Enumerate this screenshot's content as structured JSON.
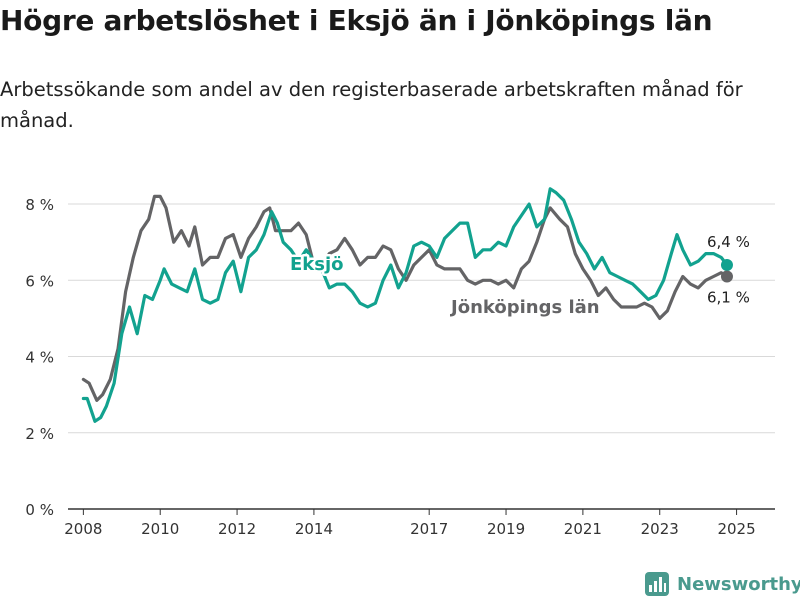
{
  "title": "Högre arbetslöshet i Eksjö än i Jönköpings län",
  "subtitle": "Arbetssökande som andel av den registerbaserade arbetskraften månad för månad.",
  "brand": "Newsworthy",
  "colors": {
    "eksjo": "#12a28f",
    "lan": "#646466",
    "grid": "#d9d9d9",
    "brand": "#4a9a8e"
  },
  "chart_data": {
    "type": "line",
    "x_unit": "year",
    "ylim": [
      0,
      8.5
    ],
    "xlim": [
      2007.6,
      2026.0
    ],
    "y_ticks": [
      0,
      2,
      4,
      6,
      8
    ],
    "y_tick_labels": [
      "0 %",
      "2 %",
      "4 %",
      "6 %",
      "8 %"
    ],
    "x_ticks": [
      2008,
      2010,
      2012,
      2014,
      2017,
      2019,
      2021,
      2023,
      2025
    ],
    "x_tick_labels": [
      "2008",
      "2010",
      "2012",
      "2014",
      "2017",
      "2019",
      "2021",
      "2023",
      "2025"
    ],
    "grid": true,
    "series": [
      {
        "name": "Eksjö",
        "color": "#12a28f",
        "end_label": "6,4 %",
        "points": [
          [
            2008.0,
            2.9
          ],
          [
            2008.1,
            2.9
          ],
          [
            2008.3,
            2.3
          ],
          [
            2008.45,
            2.4
          ],
          [
            2008.6,
            2.7
          ],
          [
            2008.8,
            3.3
          ],
          [
            2009.0,
            4.6
          ],
          [
            2009.2,
            5.3
          ],
          [
            2009.4,
            4.6
          ],
          [
            2009.6,
            5.6
          ],
          [
            2009.8,
            5.5
          ],
          [
            2010.0,
            6.0
          ],
          [
            2010.1,
            6.3
          ],
          [
            2010.3,
            5.9
          ],
          [
            2010.5,
            5.8
          ],
          [
            2010.7,
            5.7
          ],
          [
            2010.9,
            6.3
          ],
          [
            2011.1,
            5.5
          ],
          [
            2011.3,
            5.4
          ],
          [
            2011.5,
            5.5
          ],
          [
            2011.7,
            6.2
          ],
          [
            2011.9,
            6.5
          ],
          [
            2012.1,
            5.7
          ],
          [
            2012.3,
            6.6
          ],
          [
            2012.5,
            6.8
          ],
          [
            2012.7,
            7.2
          ],
          [
            2012.9,
            7.8
          ],
          [
            2013.05,
            7.5
          ],
          [
            2013.2,
            7.0
          ],
          [
            2013.4,
            6.8
          ],
          [
            2013.6,
            6.5
          ],
          [
            2013.8,
            6.8
          ],
          [
            2014.0,
            6.5
          ],
          [
            2014.2,
            6.3
          ],
          [
            2014.4,
            5.8
          ],
          [
            2014.6,
            5.9
          ],
          [
            2014.8,
            5.9
          ],
          [
            2015.0,
            5.7
          ],
          [
            2015.2,
            5.4
          ],
          [
            2015.4,
            5.3
          ],
          [
            2015.6,
            5.4
          ],
          [
            2015.8,
            6.0
          ],
          [
            2016.0,
            6.4
          ],
          [
            2016.2,
            5.8
          ],
          [
            2016.4,
            6.2
          ],
          [
            2016.6,
            6.9
          ],
          [
            2016.8,
            7.0
          ],
          [
            2017.0,
            6.9
          ],
          [
            2017.2,
            6.6
          ],
          [
            2017.4,
            7.1
          ],
          [
            2017.6,
            7.3
          ],
          [
            2017.8,
            7.5
          ],
          [
            2018.0,
            7.5
          ],
          [
            2018.2,
            6.6
          ],
          [
            2018.4,
            6.8
          ],
          [
            2018.6,
            6.8
          ],
          [
            2018.8,
            7.0
          ],
          [
            2019.0,
            6.9
          ],
          [
            2019.2,
            7.4
          ],
          [
            2019.4,
            7.7
          ],
          [
            2019.6,
            8.0
          ],
          [
            2019.8,
            7.4
          ],
          [
            2020.0,
            7.6
          ],
          [
            2020.15,
            8.4
          ],
          [
            2020.3,
            8.3
          ],
          [
            2020.5,
            8.1
          ],
          [
            2020.7,
            7.6
          ],
          [
            2020.9,
            7.0
          ],
          [
            2021.1,
            6.7
          ],
          [
            2021.3,
            6.3
          ],
          [
            2021.5,
            6.6
          ],
          [
            2021.7,
            6.2
          ],
          [
            2021.9,
            6.1
          ],
          [
            2022.1,
            6.0
          ],
          [
            2022.3,
            5.9
          ],
          [
            2022.5,
            5.7
          ],
          [
            2022.7,
            5.5
          ],
          [
            2022.9,
            5.6
          ],
          [
            2023.1,
            6.0
          ],
          [
            2023.3,
            6.7
          ],
          [
            2023.45,
            7.2
          ],
          [
            2023.6,
            6.8
          ],
          [
            2023.8,
            6.4
          ],
          [
            2024.0,
            6.5
          ],
          [
            2024.2,
            6.7
          ],
          [
            2024.4,
            6.7
          ],
          [
            2024.6,
            6.6
          ],
          [
            2024.75,
            6.4
          ]
        ]
      },
      {
        "name": "Jönköpings län",
        "color": "#646466",
        "end_label": "6,1 %",
        "points": [
          [
            2008.0,
            3.4
          ],
          [
            2008.15,
            3.3
          ],
          [
            2008.35,
            2.85
          ],
          [
            2008.5,
            3.0
          ],
          [
            2008.7,
            3.4
          ],
          [
            2008.9,
            4.2
          ],
          [
            2009.1,
            5.7
          ],
          [
            2009.3,
            6.6
          ],
          [
            2009.5,
            7.3
          ],
          [
            2009.7,
            7.6
          ],
          [
            2009.85,
            8.2
          ],
          [
            2010.0,
            8.2
          ],
          [
            2010.15,
            7.9
          ],
          [
            2010.35,
            7.0
          ],
          [
            2010.55,
            7.3
          ],
          [
            2010.75,
            6.9
          ],
          [
            2010.9,
            7.4
          ],
          [
            2011.1,
            6.4
          ],
          [
            2011.3,
            6.6
          ],
          [
            2011.5,
            6.6
          ],
          [
            2011.7,
            7.1
          ],
          [
            2011.9,
            7.2
          ],
          [
            2012.1,
            6.6
          ],
          [
            2012.3,
            7.1
          ],
          [
            2012.5,
            7.4
          ],
          [
            2012.7,
            7.8
          ],
          [
            2012.85,
            7.9
          ],
          [
            2013.0,
            7.3
          ],
          [
            2013.2,
            7.3
          ],
          [
            2013.4,
            7.3
          ],
          [
            2013.6,
            7.5
          ],
          [
            2013.8,
            7.2
          ],
          [
            2014.0,
            6.4
          ],
          [
            2014.2,
            6.4
          ],
          [
            2014.4,
            6.7
          ],
          [
            2014.6,
            6.8
          ],
          [
            2014.8,
            7.1
          ],
          [
            2015.0,
            6.8
          ],
          [
            2015.2,
            6.4
          ],
          [
            2015.4,
            6.6
          ],
          [
            2015.6,
            6.6
          ],
          [
            2015.8,
            6.9
          ],
          [
            2016.0,
            6.8
          ],
          [
            2016.2,
            6.3
          ],
          [
            2016.4,
            6.0
          ],
          [
            2016.6,
            6.4
          ],
          [
            2016.8,
            6.6
          ],
          [
            2017.0,
            6.8
          ],
          [
            2017.2,
            6.4
          ],
          [
            2017.4,
            6.3
          ],
          [
            2017.6,
            6.3
          ],
          [
            2017.8,
            6.3
          ],
          [
            2018.0,
            6.0
          ],
          [
            2018.2,
            5.9
          ],
          [
            2018.4,
            6.0
          ],
          [
            2018.6,
            6.0
          ],
          [
            2018.8,
            5.9
          ],
          [
            2019.0,
            6.0
          ],
          [
            2019.2,
            5.8
          ],
          [
            2019.4,
            6.3
          ],
          [
            2019.6,
            6.5
          ],
          [
            2019.8,
            7.0
          ],
          [
            2020.0,
            7.6
          ],
          [
            2020.15,
            7.9
          ],
          [
            2020.4,
            7.6
          ],
          [
            2020.6,
            7.4
          ],
          [
            2020.8,
            6.7
          ],
          [
            2021.0,
            6.3
          ],
          [
            2021.2,
            6.0
          ],
          [
            2021.4,
            5.6
          ],
          [
            2021.6,
            5.8
          ],
          [
            2021.8,
            5.5
          ],
          [
            2022.0,
            5.3
          ],
          [
            2022.2,
            5.3
          ],
          [
            2022.4,
            5.3
          ],
          [
            2022.6,
            5.4
          ],
          [
            2022.8,
            5.3
          ],
          [
            2023.0,
            5.0
          ],
          [
            2023.2,
            5.2
          ],
          [
            2023.4,
            5.7
          ],
          [
            2023.6,
            6.1
          ],
          [
            2023.8,
            5.9
          ],
          [
            2024.0,
            5.8
          ],
          [
            2024.2,
            6.0
          ],
          [
            2024.4,
            6.1
          ],
          [
            2024.6,
            6.2
          ],
          [
            2024.75,
            6.1
          ]
        ]
      }
    ],
    "annotations": [
      {
        "text": "Eksjö",
        "series": 0
      },
      {
        "text": "Jönköpings län",
        "series": 1
      }
    ]
  }
}
